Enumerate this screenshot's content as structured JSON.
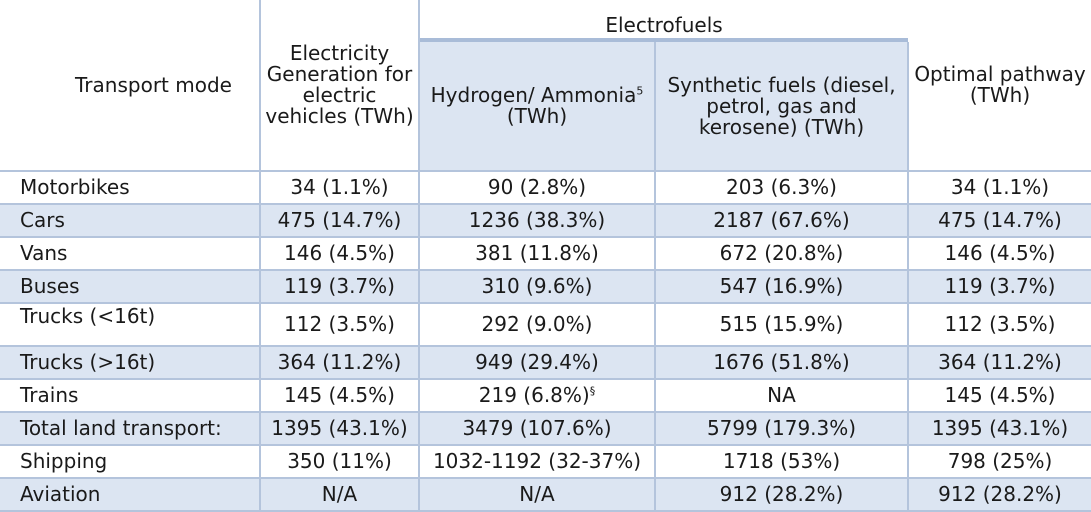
{
  "table": {
    "headers": {
      "mode": "Transport mode",
      "electricity": "Electricity Generation for electric vehicles (TWh)",
      "electrofuels_group": "Electrofuels",
      "hydrogen": "Hydrogen/ Ammonia",
      "hydrogen_footnote": "5",
      "hydrogen_unit": "(TWh)",
      "synthetic": "Synthetic fuels (diesel, petrol, gas and kerosene) (TWh)",
      "optimal": "Optimal pathway (TWh)"
    },
    "rows": [
      {
        "mode": "Motorbikes",
        "electricity": "34 (1.1%)",
        "hydrogen": "90 (2.8%)",
        "synthetic": "203 (6.3%)",
        "optimal": "34 (1.1%)"
      },
      {
        "mode": "Cars",
        "electricity": "475 (14.7%)",
        "hydrogen": "1236 (38.3%)",
        "synthetic": "2187 (67.6%)",
        "optimal": "475 (14.7%)"
      },
      {
        "mode": "Vans",
        "electricity": "146 (4.5%)",
        "hydrogen": "381 (11.8%)",
        "synthetic": "672 (20.8%)",
        "optimal": "146 (4.5%)"
      },
      {
        "mode": "Buses",
        "electricity": "119 (3.7%)",
        "hydrogen": "310 (9.6%)",
        "synthetic": "547 (16.9%)",
        "optimal": "119 (3.7%)"
      },
      {
        "mode": "Trucks (<16t)",
        "electricity": "112 (3.5%)",
        "hydrogen": "292 (9.0%)",
        "synthetic": "515 (15.9%)",
        "optimal": "112 (3.5%)"
      },
      {
        "mode": "Trucks (>16t)",
        "electricity": "364 (11.2%)",
        "hydrogen": "949 (29.4%)",
        "synthetic": "1676 (51.8%)",
        "optimal": "364 (11.2%)"
      },
      {
        "mode": "Trains",
        "electricity": "145 (4.5%)",
        "hydrogen": "219 (6.8%)",
        "hydrogen_mark": "§",
        "synthetic": "NA",
        "optimal": "145 (4.5%)"
      },
      {
        "mode": "Total land transport:",
        "electricity": "1395 (43.1%)",
        "hydrogen": "3479 (107.6%)",
        "synthetic": "5799 (179.3%)",
        "optimal": "1395 (43.1%)"
      },
      {
        "mode": "Shipping",
        "electricity": "350 (11%)",
        "hydrogen": "1032-1192 (32-37%)",
        "synthetic": "1718 (53%)",
        "optimal": "798 (25%)"
      },
      {
        "mode": "Aviation",
        "electricity": "N/A",
        "hydrogen": "N/A",
        "synthetic": "912 (28.2%)",
        "optimal": "912 (28.2%)"
      }
    ]
  }
}
